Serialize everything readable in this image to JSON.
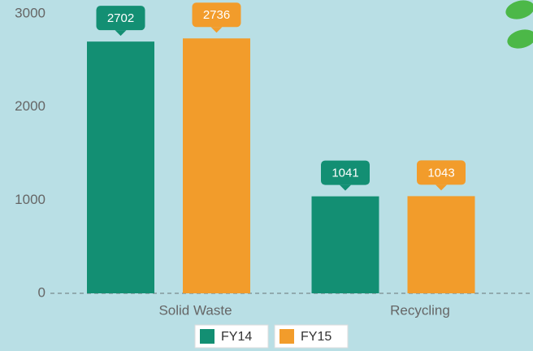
{
  "chart_data": {
    "type": "bar",
    "categories": [
      "Solid Waste",
      "Recycling"
    ],
    "series": [
      {
        "name": "FY14",
        "color": "#138f73",
        "values": [
          2702,
          1041
        ]
      },
      {
        "name": "FY15",
        "color": "#f29c2b",
        "values": [
          2736,
          1043
        ]
      }
    ],
    "ylim": [
      0,
      3000
    ],
    "yticks": [
      0,
      1000,
      2000,
      3000
    ]
  }
}
